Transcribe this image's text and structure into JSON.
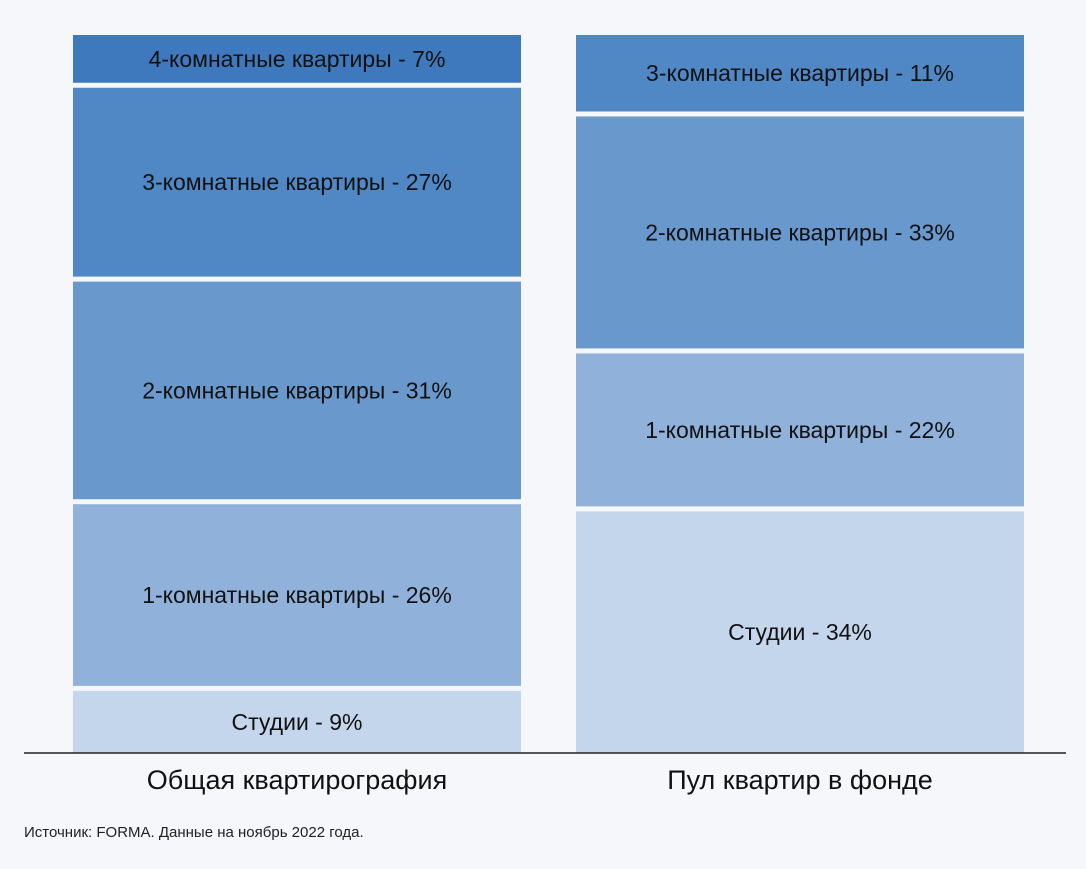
{
  "chart_data": {
    "type": "bar",
    "stacked": true,
    "categories": [
      "Общая квартирография",
      "Пул квартир в фонде"
    ],
    "stacks": [
      {
        "category": "Общая квартирография",
        "segments": [
          {
            "label": "Студии - 9%",
            "value": 9,
            "color": "#c4d6ec"
          },
          {
            "label": "1-комнатные квартиры - 26%",
            "value": 26,
            "color": "#90b2da"
          },
          {
            "label": "2-комнатные квартиры - 31%",
            "value": 31,
            "color": "#6998cc"
          },
          {
            "label": "3-комнатные квартиры - 27%",
            "value": 27,
            "color": "#5087c5"
          },
          {
            "label": "4-комнатные квартиры - 7%",
            "value": 7,
            "color": "#3e79be"
          }
        ]
      },
      {
        "category": "Пул квартир в фонде",
        "segments": [
          {
            "label": "Студии - 34%",
            "value": 34,
            "color": "#c4d6ec"
          },
          {
            "label": "1-комнатные квартиры - 22%",
            "value": 22,
            "color": "#90b2da"
          },
          {
            "label": "2-комнатные квартиры - 33%",
            "value": 33,
            "color": "#6998cc"
          },
          {
            "label": "3-комнатные квартиры - 11%",
            "value": 11,
            "color": "#5087c5"
          }
        ]
      }
    ],
    "ylim": [
      0,
      100
    ],
    "grid": false,
    "legend": "none"
  },
  "source": "Источник: FORMA. Данные на ноябрь 2022 года."
}
